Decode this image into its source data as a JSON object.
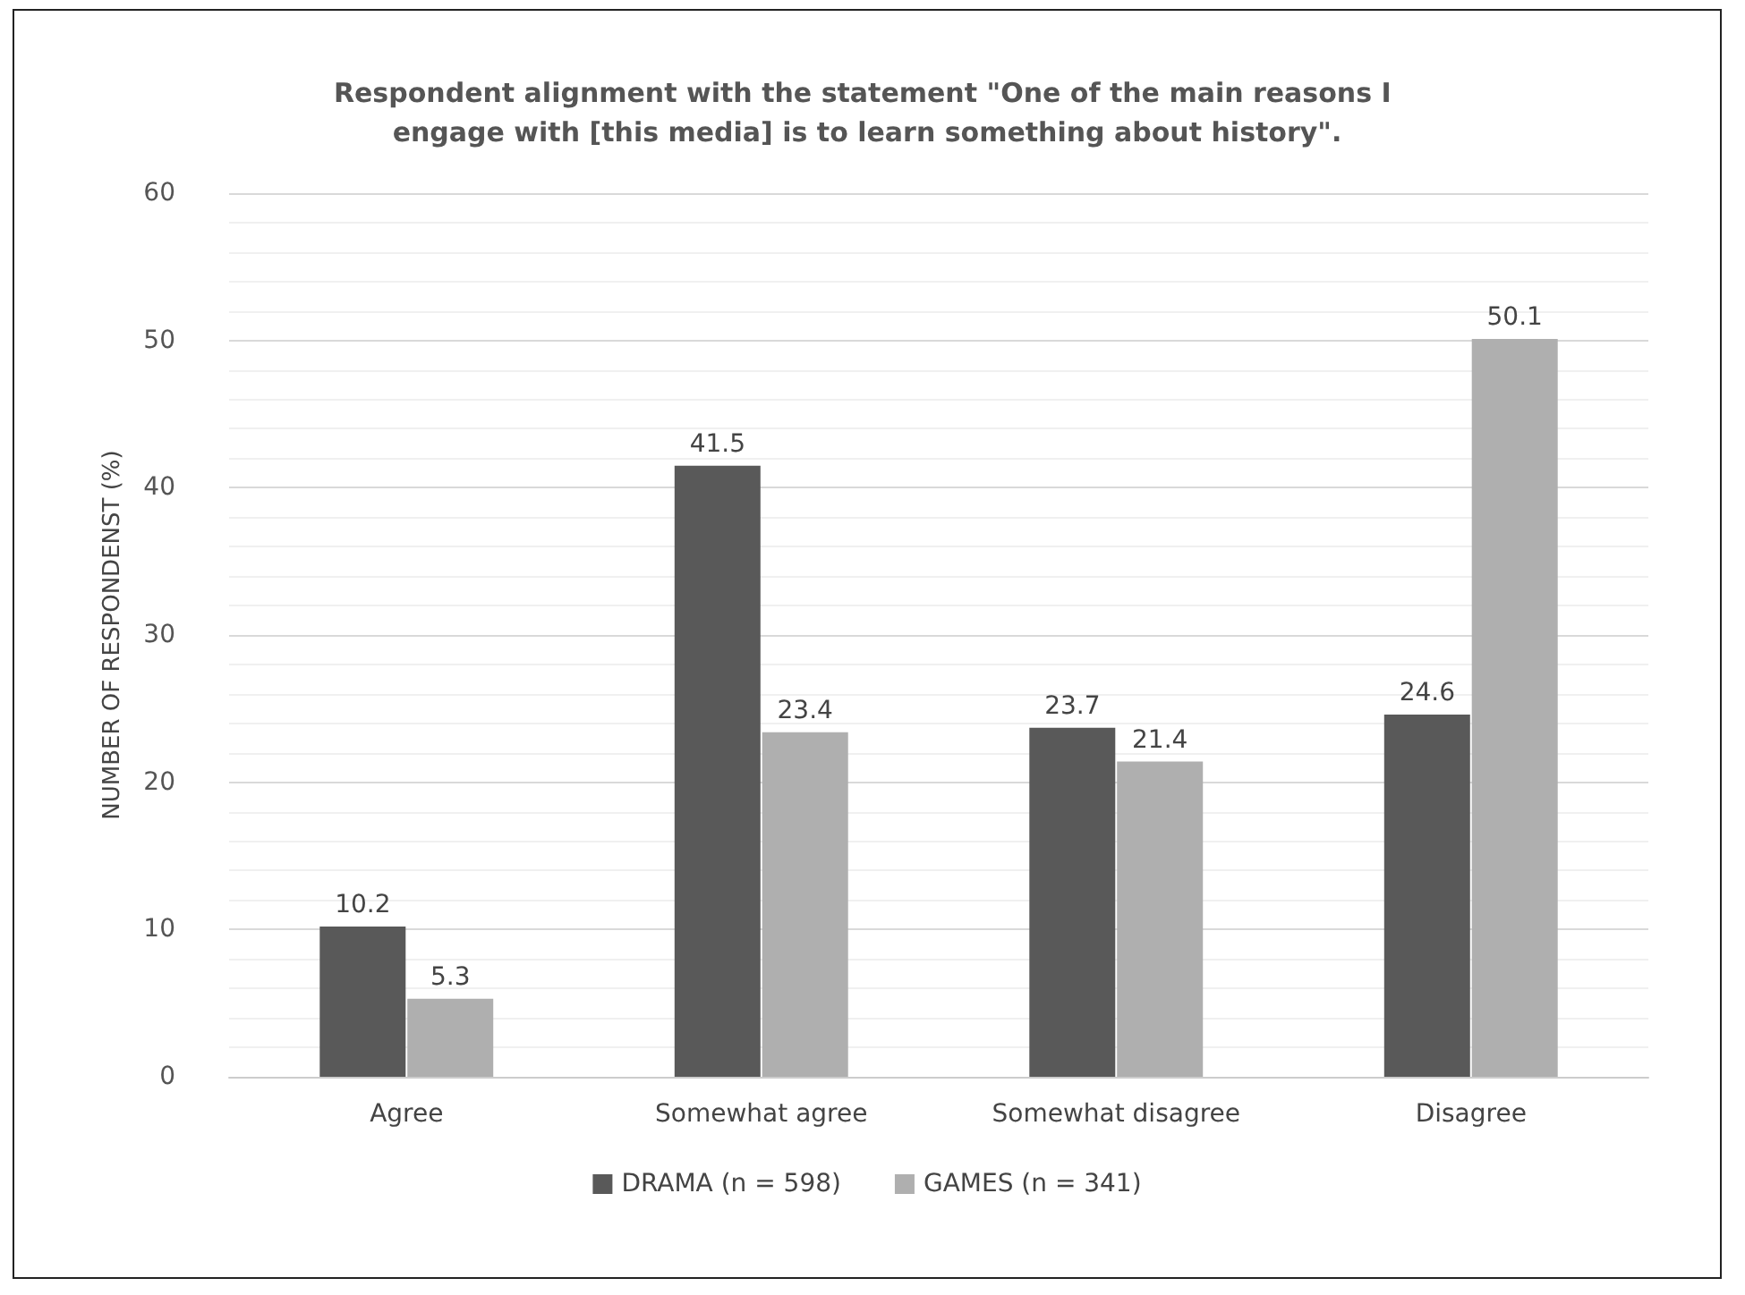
{
  "chart_data": {
    "type": "bar",
    "title": "Respondent alignment with the statement \"One of the main reasons I engage with [this media] is to learn something about history\".",
    "ylabel": "NUMBER OF RESPONDENST (%)",
    "categories": [
      "Agree",
      "Somewhat agree",
      "Somewhat disagree",
      "Disagree"
    ],
    "series": [
      {
        "name": "DRAMA (n = 598)",
        "color": "#595959",
        "values": [
          10.2,
          41.5,
          23.7,
          24.6
        ]
      },
      {
        "name": "GAMES (n = 341)",
        "color": "#afafaf",
        "values": [
          5.3,
          23.4,
          21.4,
          50.1
        ]
      }
    ],
    "ylim": [
      0,
      60
    ],
    "yticks": [
      0,
      10,
      20,
      30,
      40,
      50,
      60
    ],
    "grid": true,
    "legend": "bottom",
    "data_labels": true
  }
}
